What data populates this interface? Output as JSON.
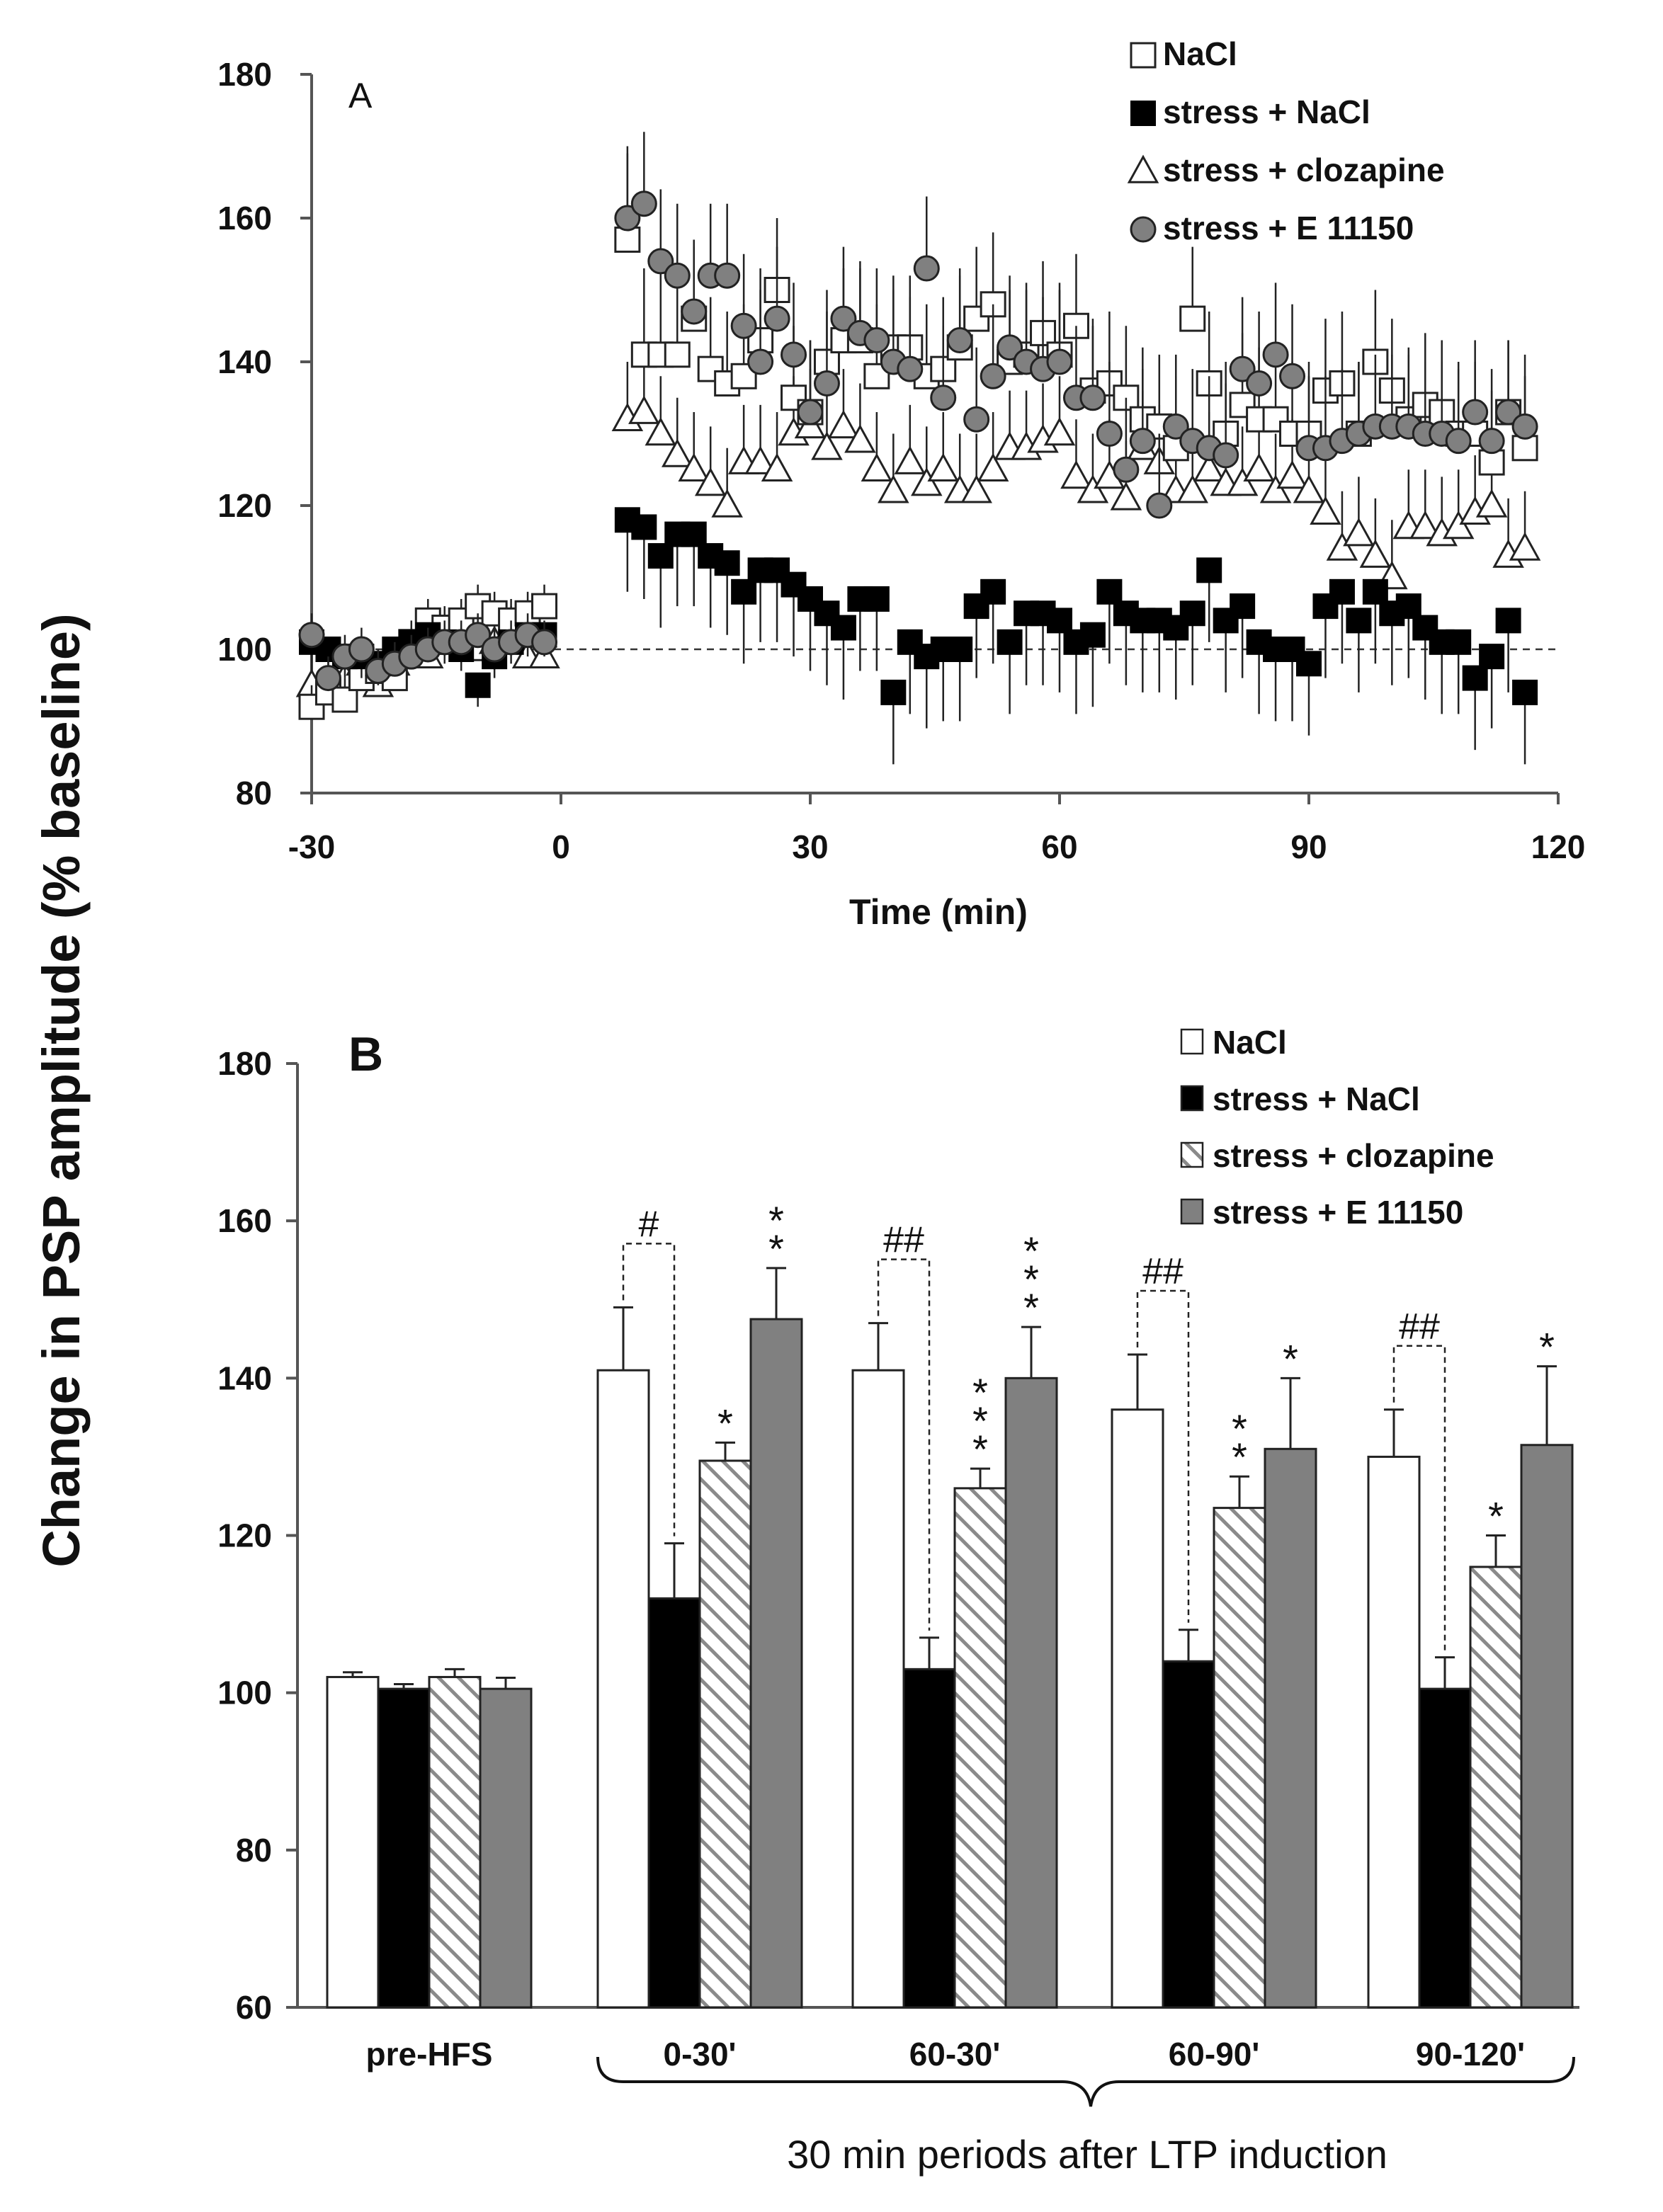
{
  "figure": {
    "ylabel": "Change in PSP amplitude (% baseline)"
  },
  "colors": {
    "white": "#ffffff",
    "black": "#000000",
    "gray": "#808080",
    "hatch_bg": "#ffffff",
    "hatch_line": "#8a8a8a",
    "stroke": "#222222"
  },
  "chart_data": [
    {
      "type": "scatter",
      "panel_label": "A",
      "xlabel": "Time (min)",
      "ylabel": "Change in PSP amplitude (% baseline)",
      "xlim": [
        -30,
        120
      ],
      "ylim": [
        80,
        180
      ],
      "xticks": [
        -30,
        0,
        30,
        60,
        90,
        120
      ],
      "yticks": [
        80,
        100,
        120,
        140,
        160,
        180
      ],
      "reference_line_y": 100,
      "legend_position": "top-right",
      "series": [
        {
          "name": "NaCl",
          "marker": "square-open",
          "x": [
            -30,
            -28,
            -26,
            -24,
            -22,
            -20,
            -18,
            -16,
            -14,
            -12,
            -10,
            -8,
            -6,
            -4,
            -2,
            8,
            10,
            12,
            14,
            16,
            18,
            20,
            22,
            24,
            26,
            28,
            30,
            32,
            34,
            36,
            38,
            40,
            42,
            44,
            46,
            48,
            50,
            52,
            54,
            56,
            58,
            60,
            62,
            64,
            66,
            68,
            70,
            72,
            74,
            76,
            78,
            80,
            82,
            84,
            86,
            88,
            90,
            92,
            94,
            96,
            98,
            100,
            102,
            104,
            106,
            108,
            110,
            112,
            114,
            116
          ],
          "y": [
            92,
            94,
            93,
            96,
            97,
            96,
            101,
            104,
            103,
            104,
            106,
            105,
            104,
            105,
            106,
            157,
            141,
            141,
            141,
            146,
            139,
            137,
            138,
            143,
            150,
            135,
            133,
            140,
            143,
            143,
            138,
            142,
            142,
            138,
            139,
            142,
            146,
            148,
            140,
            141,
            144,
            141,
            145,
            136,
            137,
            135,
            132,
            131,
            128,
            146,
            137,
            130,
            134,
            132,
            132,
            130,
            130,
            136,
            137,
            130,
            140,
            136,
            132,
            134,
            133,
            130,
            130,
            126,
            133,
            128
          ],
          "err": [
            3,
            3,
            3,
            3,
            3,
            3,
            3,
            3,
            3,
            3,
            3,
            3,
            3,
            3,
            3,
            12,
            12,
            12,
            12,
            10,
            10,
            10,
            10,
            10,
            10,
            10,
            10,
            10,
            10,
            10,
            10,
            10,
            10,
            10,
            10,
            10,
            10,
            10,
            10,
            10,
            10,
            10,
            10,
            10,
            10,
            10,
            10,
            10,
            10,
            10,
            10,
            10,
            10,
            10,
            10,
            10,
            10,
            10,
            10,
            10,
            10,
            10,
            10,
            10,
            10,
            10,
            10,
            10,
            10,
            10
          ]
        },
        {
          "name": "stress + NaCl",
          "marker": "square-filled",
          "x": [
            -30,
            -28,
            -26,
            -24,
            -22,
            -20,
            -18,
            -16,
            -14,
            -12,
            -10,
            -8,
            -6,
            -4,
            -2,
            8,
            10,
            12,
            14,
            16,
            18,
            20,
            22,
            24,
            26,
            28,
            30,
            32,
            34,
            36,
            38,
            40,
            42,
            44,
            46,
            48,
            50,
            52,
            54,
            56,
            58,
            60,
            62,
            64,
            66,
            68,
            70,
            72,
            74,
            76,
            78,
            80,
            82,
            84,
            86,
            88,
            90,
            92,
            94,
            96,
            98,
            100,
            102,
            104,
            106,
            108,
            110,
            112,
            114,
            116
          ],
          "y": [
            101,
            100,
            99,
            99,
            98,
            100,
            101,
            102,
            101,
            100,
            95,
            99,
            101,
            102,
            102,
            118,
            117,
            113,
            116,
            116,
            113,
            112,
            108,
            111,
            111,
            109,
            107,
            105,
            103,
            107,
            107,
            94,
            101,
            99,
            100,
            100,
            106,
            108,
            101,
            105,
            105,
            104,
            101,
            102,
            108,
            105,
            104,
            104,
            103,
            105,
            111,
            104,
            106,
            101,
            100,
            100,
            98,
            106,
            108,
            104,
            108,
            105,
            106,
            103,
            101,
            101,
            96,
            99,
            104,
            94
          ],
          "err": [
            3,
            3,
            3,
            3,
            3,
            3,
            3,
            3,
            3,
            3,
            3,
            3,
            3,
            3,
            3,
            10,
            10,
            10,
            10,
            10,
            10,
            10,
            10,
            10,
            10,
            10,
            10,
            10,
            10,
            10,
            10,
            10,
            10,
            10,
            10,
            10,
            10,
            10,
            10,
            10,
            10,
            10,
            10,
            10,
            10,
            10,
            10,
            10,
            10,
            10,
            10,
            10,
            10,
            10,
            10,
            10,
            10,
            10,
            10,
            10,
            10,
            10,
            10,
            10,
            10,
            10,
            10,
            10,
            10,
            10
          ]
        },
        {
          "name": "stress + clozapine",
          "marker": "triangle-open",
          "x": [
            -30,
            -28,
            -26,
            -24,
            -22,
            -20,
            -18,
            -16,
            -14,
            -12,
            -10,
            -8,
            -6,
            -4,
            -2,
            8,
            10,
            12,
            14,
            16,
            18,
            20,
            22,
            24,
            26,
            28,
            30,
            32,
            34,
            36,
            38,
            40,
            42,
            44,
            46,
            48,
            50,
            52,
            54,
            56,
            58,
            60,
            62,
            64,
            66,
            68,
            70,
            72,
            74,
            76,
            78,
            80,
            82,
            84,
            86,
            88,
            90,
            92,
            94,
            96,
            98,
            100,
            102,
            104,
            106,
            108,
            110,
            112,
            114,
            116
          ],
          "y": [
            95,
            94,
            96,
            98,
            95,
            98,
            100,
            99,
            102,
            101,
            100,
            101,
            103,
            99,
            99,
            132,
            133,
            130,
            127,
            125,
            123,
            120,
            126,
            126,
            125,
            130,
            131,
            128,
            131,
            129,
            125,
            122,
            126,
            123,
            125,
            122,
            122,
            125,
            128,
            128,
            129,
            130,
            124,
            122,
            124,
            121,
            128,
            126,
            122,
            122,
            125,
            123,
            123,
            125,
            122,
            124,
            122,
            119,
            114,
            116,
            113,
            110,
            117,
            117,
            116,
            117,
            119,
            120,
            113,
            114
          ],
          "err": [
            3,
            3,
            3,
            3,
            3,
            3,
            3,
            3,
            3,
            3,
            3,
            3,
            3,
            3,
            3,
            8,
            8,
            8,
            8,
            8,
            8,
            8,
            8,
            8,
            8,
            8,
            8,
            8,
            8,
            8,
            8,
            8,
            8,
            8,
            8,
            8,
            8,
            8,
            8,
            8,
            8,
            8,
            8,
            8,
            8,
            8,
            8,
            8,
            8,
            8,
            8,
            8,
            8,
            8,
            8,
            8,
            8,
            8,
            8,
            8,
            8,
            8,
            8,
            8,
            8,
            8,
            8,
            8,
            8,
            8
          ]
        },
        {
          "name": "stress + E 11150",
          "marker": "circle-filled-gray",
          "x": [
            -30,
            -28,
            -26,
            -24,
            -22,
            -20,
            -18,
            -16,
            -14,
            -12,
            -10,
            -8,
            -6,
            -4,
            -2,
            8,
            10,
            12,
            14,
            16,
            18,
            20,
            22,
            24,
            26,
            28,
            30,
            32,
            34,
            36,
            38,
            40,
            42,
            44,
            46,
            48,
            50,
            52,
            54,
            56,
            58,
            60,
            62,
            64,
            66,
            68,
            70,
            72,
            74,
            76,
            78,
            80,
            82,
            84,
            86,
            88,
            90,
            92,
            94,
            96,
            98,
            100,
            102,
            104,
            106,
            108,
            110,
            112,
            114,
            116
          ],
          "y": [
            102,
            96,
            99,
            100,
            97,
            98,
            99,
            100,
            101,
            101,
            102,
            100,
            101,
            102,
            101,
            160,
            162,
            154,
            152,
            147,
            152,
            152,
            145,
            140,
            146,
            141,
            133,
            137,
            146,
            144,
            143,
            140,
            139,
            153,
            135,
            143,
            132,
            138,
            142,
            140,
            139,
            140,
            135,
            135,
            130,
            125,
            129,
            120,
            131,
            129,
            128,
            127,
            139,
            137,
            141,
            138,
            128,
            128,
            129,
            130,
            131,
            131,
            131,
            130,
            130,
            129,
            133,
            129,
            133,
            131
          ],
          "err": [
            3,
            3,
            3,
            3,
            3,
            3,
            3,
            3,
            3,
            3,
            3,
            3,
            3,
            3,
            3,
            10,
            10,
            10,
            10,
            10,
            10,
            10,
            10,
            10,
            10,
            10,
            10,
            10,
            10,
            10,
            10,
            10,
            10,
            10,
            10,
            10,
            10,
            10,
            10,
            10,
            10,
            10,
            10,
            10,
            10,
            10,
            10,
            10,
            10,
            10,
            10,
            10,
            10,
            10,
            10,
            10,
            10,
            10,
            10,
            10,
            10,
            10,
            10,
            10,
            10,
            10,
            10,
            10,
            10,
            10
          ]
        }
      ]
    },
    {
      "type": "bar",
      "panel_label": "B",
      "ylabel": "Change in PSP amplitude (% baseline)",
      "xlabel": "30 min periods after LTP induction",
      "ylim": [
        60,
        180
      ],
      "yticks": [
        60,
        80,
        100,
        120,
        140,
        160,
        180
      ],
      "legend_position": "top-right",
      "categories": [
        "pre-HFS",
        "0-30'",
        "60-30'",
        "60-90'",
        "90-120'"
      ],
      "series": [
        {
          "name": "NaCl",
          "fill": "white",
          "values": [
            102,
            141,
            141,
            136,
            130
          ],
          "errors": [
            0.6,
            8,
            6,
            7,
            6
          ]
        },
        {
          "name": "stress + NaCl",
          "fill": "black",
          "values": [
            100.5,
            112,
            103,
            104,
            100.5
          ],
          "errors": [
            0.6,
            7,
            4,
            4,
            4
          ]
        },
        {
          "name": "stress + clozapine",
          "fill": "hatch",
          "values": [
            102,
            129.5,
            126,
            123.5,
            116
          ],
          "errors": [
            1,
            2.3,
            2.5,
            4,
            4
          ]
        },
        {
          "name": "stress + E 11150",
          "fill": "gray",
          "values": [
            100.5,
            147.5,
            140,
            131,
            131.5
          ],
          "errors": [
            1.4,
            6.5,
            6.5,
            9,
            10
          ]
        }
      ],
      "stars": [
        null,
        {
          "clozapine": "*",
          "e11150": "**"
        },
        {
          "clozapine": "***",
          "e11150": "***"
        },
        {
          "clozapine": "**",
          "e11150": "*"
        },
        {
          "clozapine": "*",
          "e11150": "*"
        }
      ],
      "hash_brackets": [
        null,
        "#",
        "##",
        "##",
        "##"
      ]
    }
  ]
}
